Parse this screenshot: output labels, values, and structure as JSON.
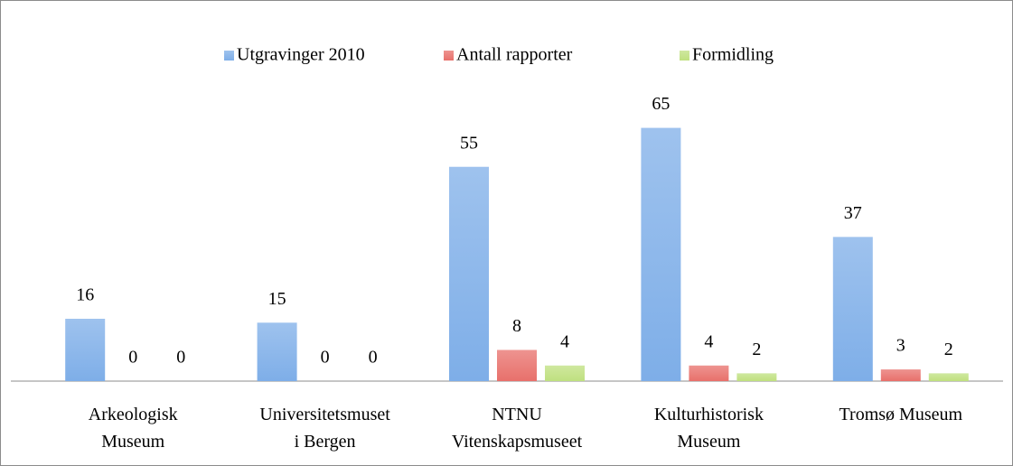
{
  "chart_data": {
    "type": "bar",
    "categories": [
      "Arkeologisk\nMuseum",
      "Universitetsmuset\ni Bergen",
      "NTNU\nVitenskapsmuseet",
      "Kulturhistorisk\nMuseum",
      "Tromsø Museum"
    ],
    "series": [
      {
        "name": "Utgravinger 2010",
        "color": "#7eaee8",
        "values": [
          16,
          15,
          55,
          65,
          37
        ]
      },
      {
        "name": "Antall rapporter",
        "color": "#e8706b",
        "values": [
          0,
          0,
          8,
          4,
          3
        ]
      },
      {
        "name": "Formidling",
        "color": "#bfe07f",
        "values": [
          0,
          0,
          4,
          2,
          2
        ]
      }
    ],
    "ylim": [
      0,
      70
    ],
    "legend": "top"
  }
}
